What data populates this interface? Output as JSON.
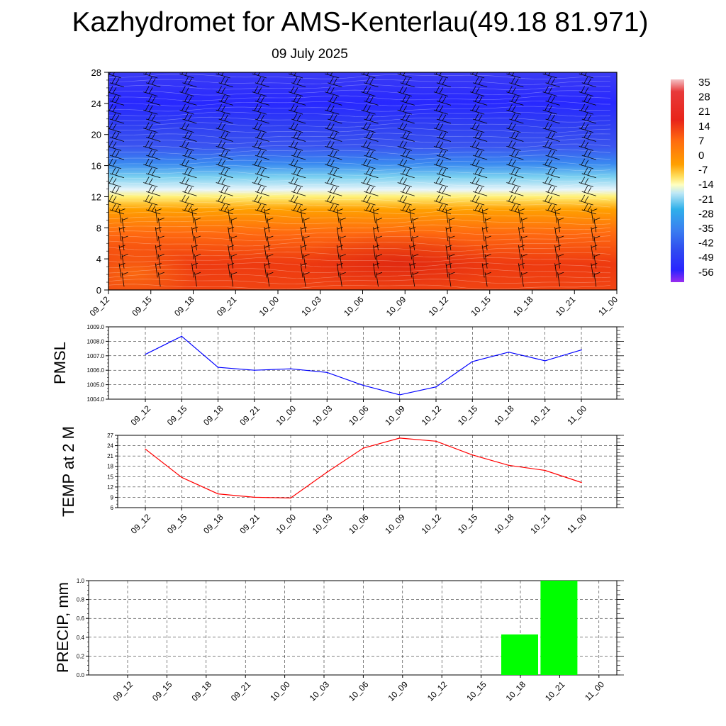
{
  "title": "Kazhydromet for AMS-Kenterlau(49.18 81.971)",
  "subtitle": "09 July 2025",
  "chart_data": [
    {
      "type": "heatmap",
      "name": "cross-section",
      "x_tick_labels": [
        "09_12",
        "09_15",
        "09_18",
        "09_21",
        "10_00",
        "10_03",
        "10_06",
        "10_09",
        "10_12",
        "10_15",
        "10_18",
        "10_21",
        "11_00"
      ],
      "y_tick_labels": [
        "0",
        "4",
        "8",
        "12",
        "16",
        "20",
        "24",
        "28"
      ],
      "ylim": [
        0,
        28
      ],
      "colorbar_labels": [
        "35",
        "28",
        "21",
        "14",
        "7",
        "0",
        "-7",
        "-14",
        "-21",
        "-28",
        "-35",
        "-42",
        "-49",
        "-56"
      ],
      "colors": {
        "violet": "#9a2cf0",
        "blue": "#2f32ff",
        "light_blue": "#8ed8f0",
        "yellow": "#fff27a",
        "orange": "#ff9500",
        "red": "#ee2a10",
        "pink": "#f4b7bb"
      }
    },
    {
      "type": "line",
      "ylabel": "PMSL",
      "ylim": [
        1004.0,
        1009.0
      ],
      "y_tick_labels": [
        "1004.0",
        "1005.0",
        "1006.0",
        "1007.0",
        "1008.0",
        "1009.0"
      ],
      "categories": [
        "09_12",
        "09_15",
        "09_18",
        "09_21",
        "10_00",
        "10_03",
        "10_06",
        "10_09",
        "10_12",
        "10_15",
        "10_18",
        "10_21",
        "11_00"
      ],
      "values": [
        1007.1,
        1008.35,
        1006.2,
        1006.0,
        1006.1,
        1005.85,
        1004.95,
        1004.3,
        1004.85,
        1006.6,
        1007.25,
        1006.65,
        1007.4
      ],
      "color": "#0000ff"
    },
    {
      "type": "line",
      "ylabel": "TEMP at 2 M",
      "ylim": [
        6,
        27
      ],
      "y_tick_labels": [
        "6",
        "9",
        "12",
        "15",
        "18",
        "21",
        "24",
        "27"
      ],
      "categories": [
        "09_12",
        "09_15",
        "09_18",
        "09_21",
        "10_00",
        "10_03",
        "10_06",
        "10_09",
        "10_12",
        "10_15",
        "10_18",
        "10_21",
        "11_00"
      ],
      "values": [
        23.0,
        14.8,
        10.0,
        9.0,
        8.8,
        16.3,
        23.3,
        26.2,
        25.3,
        21.3,
        18.3,
        16.8,
        13.3
      ],
      "color": "#ff0000"
    },
    {
      "type": "bar",
      "ylabel": "PRECIP, mm",
      "ylim": [
        0.0,
        1.0
      ],
      "y_tick_labels": [
        "0.0",
        "0.2",
        "0.4",
        "0.6",
        "0.8",
        "1.0"
      ],
      "categories": [
        "09_12",
        "09_15",
        "09_18",
        "09_21",
        "10_00",
        "10_03",
        "10_06",
        "10_09",
        "10_12",
        "10_15",
        "10_18",
        "10_21",
        "11_00"
      ],
      "values": [
        0,
        0,
        0,
        0,
        0,
        0,
        0,
        0,
        0,
        0,
        0.43,
        1.0,
        0
      ],
      "color": "#00ff00"
    }
  ]
}
